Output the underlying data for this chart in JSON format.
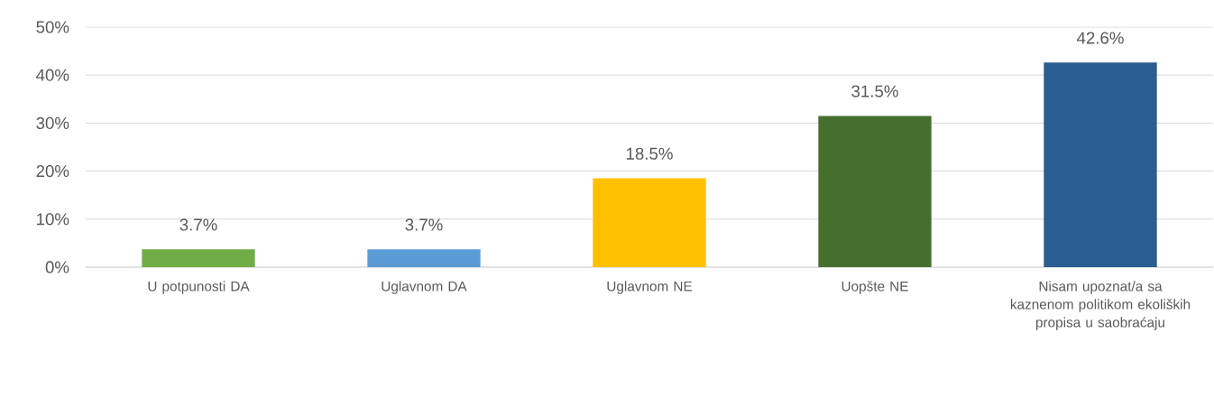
{
  "chart_data": {
    "type": "bar",
    "categories": [
      "U potpunosti DA",
      "Uglavnom DA",
      "Uglavnom NE",
      "Uopšte NE",
      "Nisam upoznat/a sa kaznenom politikom ekoliških propisa u saobraćaju"
    ],
    "values": [
      3.7,
      3.7,
      18.5,
      31.5,
      42.6
    ],
    "colors": [
      "#70ad47",
      "#5b9bd5",
      "#ffc000",
      "#466f2e",
      "#2a5d91"
    ],
    "value_labels": [
      "3.7%",
      "3.7%",
      "18.5%",
      "31.5%",
      "42.6%"
    ],
    "ylim": [
      0,
      50
    ],
    "yticks": [
      {
        "value": 0,
        "label": "0%"
      },
      {
        "value": 10,
        "label": "10%"
      },
      {
        "value": 20,
        "label": "20%"
      },
      {
        "value": 30,
        "label": "30%"
      },
      {
        "value": 40,
        "label": "40%"
      },
      {
        "value": 50,
        "label": "50%"
      }
    ],
    "grid": "y"
  }
}
